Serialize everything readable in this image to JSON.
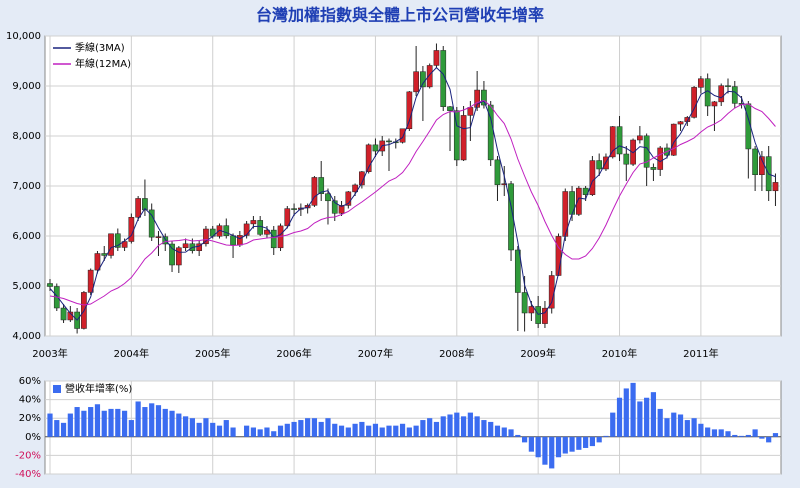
{
  "chart_data": [
    {
      "type": "candlestick",
      "title": "台灣加權指數與全體上市公司營收年增率",
      "categories": [
        "2003年",
        null,
        null,
        null,
        null,
        null,
        null,
        null,
        null,
        null,
        null,
        null,
        "2004年",
        null,
        null,
        null,
        null,
        null,
        null,
        null,
        null,
        null,
        null,
        null,
        "2005年",
        null,
        null,
        null,
        null,
        null,
        null,
        null,
        null,
        null,
        null,
        null,
        "2006年",
        null,
        null,
        null,
        null,
        null,
        null,
        null,
        null,
        null,
        null,
        null,
        "2007年",
        null,
        null,
        null,
        null,
        null,
        null,
        null,
        null,
        null,
        null,
        null,
        "2008年",
        null,
        null,
        null,
        null,
        null,
        null,
        null,
        null,
        null,
        null,
        null,
        "2009年",
        null,
        null,
        null,
        null,
        null,
        null,
        null,
        null,
        null,
        null,
        null,
        "2010年",
        null,
        null,
        null,
        null,
        null,
        null,
        null,
        null,
        null,
        null,
        null,
        "2011年",
        null,
        null,
        null,
        null,
        null,
        null,
        null,
        null,
        null,
        null,
        null
      ],
      "open": [
        5050,
        4990,
        4560,
        4321,
        4480,
        4150,
        4872,
        5318,
        5650,
        5611,
        6045,
        5771,
        5890,
        6375,
        6751,
        6522,
        5977,
        5986,
        5840,
        5420,
        5765,
        5845,
        5706,
        5844,
        6140,
        5994,
        6207,
        6006,
        5819,
        6012,
        6242,
        6312,
        6033,
        6118,
        5764,
        6203,
        6548,
        6532,
        6561,
        6613,
        7171,
        6846,
        6704,
        6454,
        6612,
        6883,
        7021,
        7285,
        7823,
        7699,
        7902,
        7884,
        7875,
        8145,
        8883,
        9287,
        8982,
        9411,
        9711,
        8586,
        8506,
        7521,
        8412,
        8572,
        8919,
        8619,
        7523,
        7024,
        7046,
        5720,
        4870,
        4460,
        4591,
        4248,
        4557,
        5210,
        5992,
        6890,
        6432,
        6958,
        6826,
        7509,
        7340,
        7582,
        8188,
        7640,
        7436,
        7920,
        8004,
        7374,
        7329,
        7761,
        7616,
        8238,
        8287,
        8372,
        8973,
        9146,
        8600,
        8683,
        9007,
        8988,
        8653,
        8644,
        7741,
        7225,
        7588,
        6904
      ],
      "high": [
        5140,
        5050,
        4640,
        4600,
        4560,
        4900,
        5350,
        5700,
        5800,
        6050,
        6150,
        5950,
        6450,
        6800,
        7130,
        6650,
        6100,
        6050,
        5900,
        5800,
        5950,
        5950,
        5900,
        6200,
        6200,
        6250,
        6350,
        6050,
        6100,
        6300,
        6400,
        6400,
        6200,
        6200,
        6250,
        6600,
        6650,
        6650,
        6650,
        7200,
        7500,
        6950,
        6800,
        6700,
        6900,
        7050,
        7300,
        7850,
        7950,
        8000,
        7950,
        7950,
        8150,
        8900,
        9800,
        9400,
        9450,
        9850,
        9800,
        8600,
        8580,
        8600,
        8700,
        9300,
        9100,
        8700,
        7600,
        7400,
        7100,
        5800,
        5200,
        4700,
        4800,
        4700,
        5300,
        6050,
        6950,
        7000,
        7000,
        7000,
        7600,
        7650,
        7650,
        8200,
        8400,
        7800,
        7950,
        8200,
        8050,
        7450,
        7800,
        7850,
        8250,
        8300,
        8400,
        9000,
        9200,
        9250,
        8700,
        9050,
        9150,
        9100,
        8800,
        8700,
        7800,
        7700,
        7800,
        7250
      ],
      "low": [
        4900,
        4500,
        4260,
        4280,
        4050,
        4130,
        4820,
        5250,
        5500,
        5550,
        5700,
        5700,
        5850,
        6300,
        6400,
        5900,
        5600,
        5700,
        5280,
        5260,
        5700,
        5650,
        5600,
        5790,
        5950,
        5950,
        5950,
        5560,
        5780,
        5950,
        6150,
        6000,
        5950,
        5620,
        5700,
        6150,
        6400,
        6400,
        6450,
        6580,
        6700,
        6230,
        6300,
        6400,
        6550,
        6800,
        6950,
        7250,
        7580,
        7600,
        7300,
        7750,
        7850,
        8100,
        8800,
        8300,
        8950,
        9350,
        8500,
        7700,
        7400,
        7500,
        7900,
        8500,
        8550,
        7400,
        6700,
        6800,
        5500,
        4100,
        4090,
        4300,
        4160,
        4160,
        4450,
        5200,
        5900,
        6300,
        6400,
        6700,
        6800,
        7200,
        7300,
        7550,
        7500,
        7100,
        7400,
        7850,
        7000,
        7100,
        7200,
        7550,
        7600,
        8100,
        8200,
        8350,
        8850,
        8400,
        8100,
        8600,
        8850,
        8550,
        8550,
        7150,
        6900,
        6900,
        6700,
        6600
      ],
      "close": [
        4990,
        4560,
        4321,
        4480,
        4150,
        4872,
        5318,
        5650,
        5611,
        6045,
        5771,
        5890,
        6375,
        6751,
        6522,
        5977,
        5986,
        5840,
        5420,
        5765,
        5845,
        5706,
        5844,
        6140,
        5994,
        6207,
        6006,
        5819,
        6012,
        6242,
        6312,
        6033,
        6118,
        5764,
        6203,
        6548,
        6532,
        6561,
        6613,
        7171,
        6846,
        6704,
        6454,
        6612,
        6883,
        7021,
        7285,
        7823,
        7699,
        7902,
        7884,
        7875,
        8145,
        8883,
        9287,
        8982,
        9411,
        9711,
        8586,
        8506,
        7521,
        8412,
        8572,
        8919,
        8619,
        7523,
        7024,
        7046,
        5720,
        4870,
        4460,
        4591,
        4248,
        4557,
        5210,
        5992,
        6890,
        6432,
        6958,
        6826,
        7509,
        7340,
        7582,
        8188,
        7640,
        7436,
        7920,
        8004,
        7374,
        7329,
        7761,
        7616,
        8238,
        8287,
        8372,
        8973,
        9146,
        8600,
        8683,
        9007,
        8988,
        8653,
        8644,
        7741,
        7225,
        7588,
        6904,
        7072
      ],
      "up_color": "#d0202a",
      "down_color": "#2f9a3a",
      "series": [
        {
          "name": "季線(3MA)",
          "color": "#1a237e",
          "values": [
            4950,
            4800,
            4624,
            4454,
            4317,
            4501,
            4780,
            5280,
            5526,
            5769,
            5809,
            5902,
            6012,
            6339,
            6549,
            6417,
            6162,
            5934,
            5749,
            5675,
            5677,
            5772,
            5798,
            5897,
            5993,
            6114,
            6069,
            6011,
            5946,
            6024,
            6189,
            6196,
            6154,
            5972,
            6028,
            6172,
            6428,
            6547,
            6569,
            6782,
            6877,
            6907,
            6668,
            6590,
            6650,
            6839,
            7063,
            7376,
            7602,
            7808,
            7828,
            7887,
            7968,
            8301,
            8772,
            9051,
            9227,
            9368,
            9236,
            8934,
            8204,
            8146,
            8168,
            8634,
            8703,
            8354,
            7722,
            7198,
            6597,
            5879,
            5017,
            4640,
            4433,
            4465,
            4672,
            5253,
            6031,
            6438,
            6760,
            6739,
            7098,
            7225,
            7477,
            7703,
            7803,
            7755,
            7665,
            7787,
            7766,
            7569,
            7488,
            7569,
            7872,
            8047,
            8299,
            8544,
            8830,
            8906,
            8810,
            8763,
            8893,
            8883,
            8762,
            8346,
            7870,
            7518,
            7239,
            7188
          ]
        },
        {
          "name": "年線(12MA)",
          "color": "#c020c0",
          "values": [
            4800,
            4780,
            4750,
            4700,
            4650,
            4620,
            4640,
            4720,
            4800,
            4900,
            4960,
            5050,
            5170,
            5350,
            5540,
            5660,
            5810,
            5890,
            5900,
            5910,
            5930,
            5900,
            5910,
            5930,
            5900,
            5860,
            5820,
            5810,
            5820,
            5850,
            5920,
            5940,
            5960,
            5970,
            5990,
            6020,
            6070,
            6100,
            6150,
            6260,
            6330,
            6370,
            6380,
            6430,
            6490,
            6590,
            6680,
            6780,
            6880,
            6990,
            7100,
            7160,
            7270,
            7450,
            7690,
            7890,
            8100,
            8320,
            8430,
            8490,
            8480,
            8520,
            8580,
            8670,
            8710,
            8600,
            8410,
            8250,
            7940,
            7540,
            7200,
            6880,
            6610,
            6290,
            6010,
            5770,
            5630,
            5540,
            5540,
            5600,
            5750,
            5960,
            6220,
            6520,
            6800,
            7040,
            7270,
            7440,
            7480,
            7560,
            7630,
            7690,
            7750,
            7830,
            7890,
            7960,
            8080,
            8180,
            8240,
            8320,
            8450,
            8560,
            8630,
            8640,
            8550,
            8490,
            8350,
            8190
          ]
        }
      ],
      "ylim": [
        4000,
        10000
      ],
      "yticks": [
        {
          "value": 4000,
          "label": "4,000"
        },
        {
          "value": 5000,
          "label": "5,000"
        },
        {
          "value": 6000,
          "label": "6,000"
        },
        {
          "value": 7000,
          "label": "7,000"
        },
        {
          "value": 8000,
          "label": "8,000"
        },
        {
          "value": 9000,
          "label": "9,000"
        },
        {
          "value": 10000,
          "label": "10,000"
        }
      ],
      "grid": true,
      "legend": "upper-left"
    },
    {
      "type": "bar",
      "series": [
        {
          "name": "營收年增率(%)",
          "color": "#3b6cf0",
          "values": [
            25,
            18,
            15,
            25,
            32,
            28,
            32,
            35,
            28,
            30,
            30,
            28,
            18,
            38,
            32,
            36,
            34,
            30,
            28,
            25,
            22,
            20,
            15,
            20,
            15,
            12,
            18,
            10,
            0,
            12,
            10,
            8,
            10,
            6,
            12,
            14,
            16,
            18,
            20,
            20,
            16,
            20,
            14,
            12,
            10,
            14,
            16,
            12,
            14,
            10,
            12,
            12,
            14,
            10,
            12,
            18,
            20,
            16,
            22,
            24,
            26,
            22,
            26,
            22,
            18,
            16,
            12,
            10,
            8,
            2,
            -6,
            -16,
            -22,
            -30,
            -34,
            -22,
            -18,
            -16,
            -14,
            -12,
            -10,
            -6,
            1,
            26,
            42,
            52,
            58,
            38,
            42,
            48,
            30,
            20,
            26,
            24,
            18,
            20,
            14,
            10,
            8,
            8,
            6,
            2,
            1,
            2,
            8,
            -2,
            -6,
            4
          ]
        }
      ],
      "ylim": [
        -40,
        60
      ],
      "yticks": [
        {
          "value": -40,
          "label": "-40%"
        },
        {
          "value": -20,
          "label": "-20%"
        },
        {
          "value": 0,
          "label": "0%"
        },
        {
          "value": 20,
          "label": "20%"
        },
        {
          "value": 40,
          "label": "40%"
        },
        {
          "value": 60,
          "label": "60%"
        }
      ],
      "negative_label_color": "#d0105a",
      "grid": true,
      "legend": "upper-left"
    }
  ]
}
